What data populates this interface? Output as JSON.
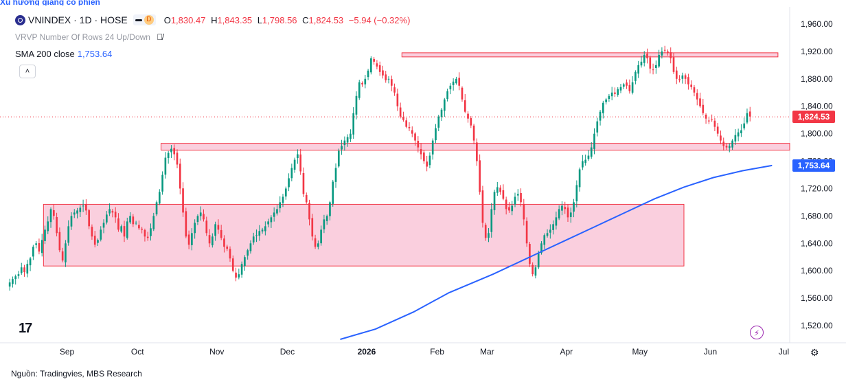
{
  "header": {
    "symbol": "VNINDEX · 1D · HOSE",
    "badge": "D",
    "ohlc": [
      {
        "k": "O",
        "v": "1,830.47"
      },
      {
        "k": "H",
        "v": "1,843.35"
      },
      {
        "k": "L",
        "v": "1,798.56"
      },
      {
        "k": "C",
        "v": "1,824.53"
      }
    ],
    "change": "−5.94 (−0.32%)"
  },
  "vrvp_label": "VRVP Number Of Rows 24 Up/Down",
  "sma_label": "SMA 200 close",
  "sma_value": "1,753.64",
  "last_price_tag": "1,824.53",
  "sma_price_tag": "1,753.64",
  "source_note": "Nguồn: Tradingvies, MBS Research",
  "tv_logo": "17",
  "icons": {
    "eye": "eye-crossed-icon",
    "collapse": "chevron-up-icon",
    "bolt": "lightning-icon",
    "gear": "gear-icon",
    "logo": "vnindex-logo-icon"
  },
  "colors": {
    "up": "#089981",
    "down": "#f23645",
    "sma": "#2962ff",
    "zone_fill": "#f8bbd0",
    "zone_border": "#f23645"
  },
  "chart_data": {
    "type": "candlestick",
    "title": "VNINDEX · 1D · HOSE",
    "y_axis": {
      "ticks": [
        1520,
        1560,
        1600,
        1640,
        1680,
        1720,
        1760,
        1800,
        1840,
        1880,
        1920,
        1960
      ],
      "tick_labels": [
        "1,520.00",
        "1,560.00",
        "1,600.00",
        "1,640.00",
        "1,680.00",
        "1,720.00",
        "1,760.00",
        "1,800.00",
        "1,840.00",
        "1,880.00",
        "1,920.00",
        "1,960.00"
      ],
      "range": [
        1495,
        1985
      ]
    },
    "x_axis": {
      "range": [
        0,
        266
      ],
      "labels": [
        {
          "t": 20,
          "label": "Sep"
        },
        {
          "t": 44,
          "label": "Oct"
        },
        {
          "t": 71,
          "label": "Nov"
        },
        {
          "t": 95,
          "label": "Dec"
        },
        {
          "t": 122,
          "label": "2026",
          "bold": true
        },
        {
          "t": 146,
          "label": "Feb"
        },
        {
          "t": 163,
          "label": "Mar"
        },
        {
          "t": 190,
          "label": "Apr"
        },
        {
          "t": 215,
          "label": "May"
        },
        {
          "t": 239,
          "label": "Jun"
        },
        {
          "t": 264,
          "label": "Jul"
        }
      ]
    },
    "candles_close": [
      1583,
      1588,
      1592,
      1595,
      1605,
      1598,
      1610,
      1618,
      1635,
      1640,
      1628,
      1645,
      1660,
      1672,
      1690,
      1680,
      1655,
      1630,
      1615,
      1640,
      1665,
      1680,
      1685,
      1688,
      1692,
      1695,
      1688,
      1665,
      1650,
      1638,
      1645,
      1660,
      1670,
      1682,
      1690,
      1685,
      1678,
      1660,
      1665,
      1650,
      1672,
      1680,
      1668,
      1670,
      1662,
      1660,
      1650,
      1648,
      1662,
      1680,
      1700,
      1715,
      1740,
      1765,
      1772,
      1778,
      1770,
      1755,
      1720,
      1685,
      1650,
      1638,
      1655,
      1670,
      1680,
      1685,
      1675,
      1655,
      1640,
      1650,
      1668,
      1660,
      1648,
      1635,
      1632,
      1618,
      1600,
      1590,
      1595,
      1610,
      1620,
      1630,
      1640,
      1650,
      1652,
      1658,
      1660,
      1665,
      1672,
      1678,
      1685,
      1690,
      1700,
      1708,
      1720,
      1735,
      1750,
      1762,
      1770,
      1745,
      1712,
      1700,
      1675,
      1650,
      1635,
      1640,
      1660,
      1675,
      1680,
      1700,
      1730,
      1750,
      1775,
      1782,
      1790,
      1795,
      1800,
      1830,
      1855,
      1875,
      1872,
      1880,
      1892,
      1910,
      1905,
      1898,
      1890,
      1885,
      1878,
      1880,
      1870,
      1860,
      1840,
      1825,
      1820,
      1810,
      1808,
      1800,
      1790,
      1780,
      1770,
      1760,
      1752,
      1768,
      1790,
      1808,
      1825,
      1835,
      1850,
      1862,
      1870,
      1876,
      1880,
      1870,
      1850,
      1832,
      1822,
      1812,
      1790,
      1760,
      1715,
      1670,
      1648,
      1655,
      1690,
      1715,
      1722,
      1715,
      1705,
      1690,
      1688,
      1695,
      1708,
      1712,
      1700,
      1675,
      1640,
      1610,
      1595,
      1605,
      1625,
      1640,
      1652,
      1655,
      1660,
      1668,
      1678,
      1690,
      1695,
      1690,
      1678,
      1685,
      1700,
      1725,
      1748,
      1760,
      1762,
      1768,
      1780,
      1800,
      1818,
      1832,
      1845,
      1850,
      1855,
      1860,
      1858,
      1865,
      1868,
      1872,
      1870,
      1862,
      1875,
      1890,
      1900,
      1905,
      1915,
      1910,
      1895,
      1893,
      1900,
      1915,
      1920,
      1922,
      1918,
      1910,
      1890,
      1880,
      1878,
      1885,
      1880,
      1872,
      1868,
      1860,
      1850,
      1840,
      1830,
      1822,
      1818,
      1820,
      1810,
      1800,
      1790,
      1782,
      1780,
      1782,
      1790,
      1798,
      1802,
      1805,
      1815,
      1830,
      1825
    ],
    "sma200": [
      {
        "t": 113,
        "v": 1500
      },
      {
        "t": 125,
        "v": 1515
      },
      {
        "t": 138,
        "v": 1540
      },
      {
        "t": 150,
        "v": 1568
      },
      {
        "t": 165,
        "v": 1595
      },
      {
        "t": 180,
        "v": 1625
      },
      {
        "t": 190,
        "v": 1645
      },
      {
        "t": 200,
        "v": 1665
      },
      {
        "t": 210,
        "v": 1685
      },
      {
        "t": 220,
        "v": 1705
      },
      {
        "t": 230,
        "v": 1722
      },
      {
        "t": 240,
        "v": 1736
      },
      {
        "t": 250,
        "v": 1746
      },
      {
        "t": 260,
        "v": 1753.64
      }
    ],
    "last_price": 1824.53,
    "zones": [
      {
        "t0": 12,
        "t1": 230,
        "y0": 1607,
        "y1": 1697
      },
      {
        "t0": 52,
        "t1": 266,
        "y0": 1776,
        "y1": 1786
      },
      {
        "t0": 134,
        "t1": 262,
        "y0": 1912,
        "y1": 1918
      }
    ]
  }
}
